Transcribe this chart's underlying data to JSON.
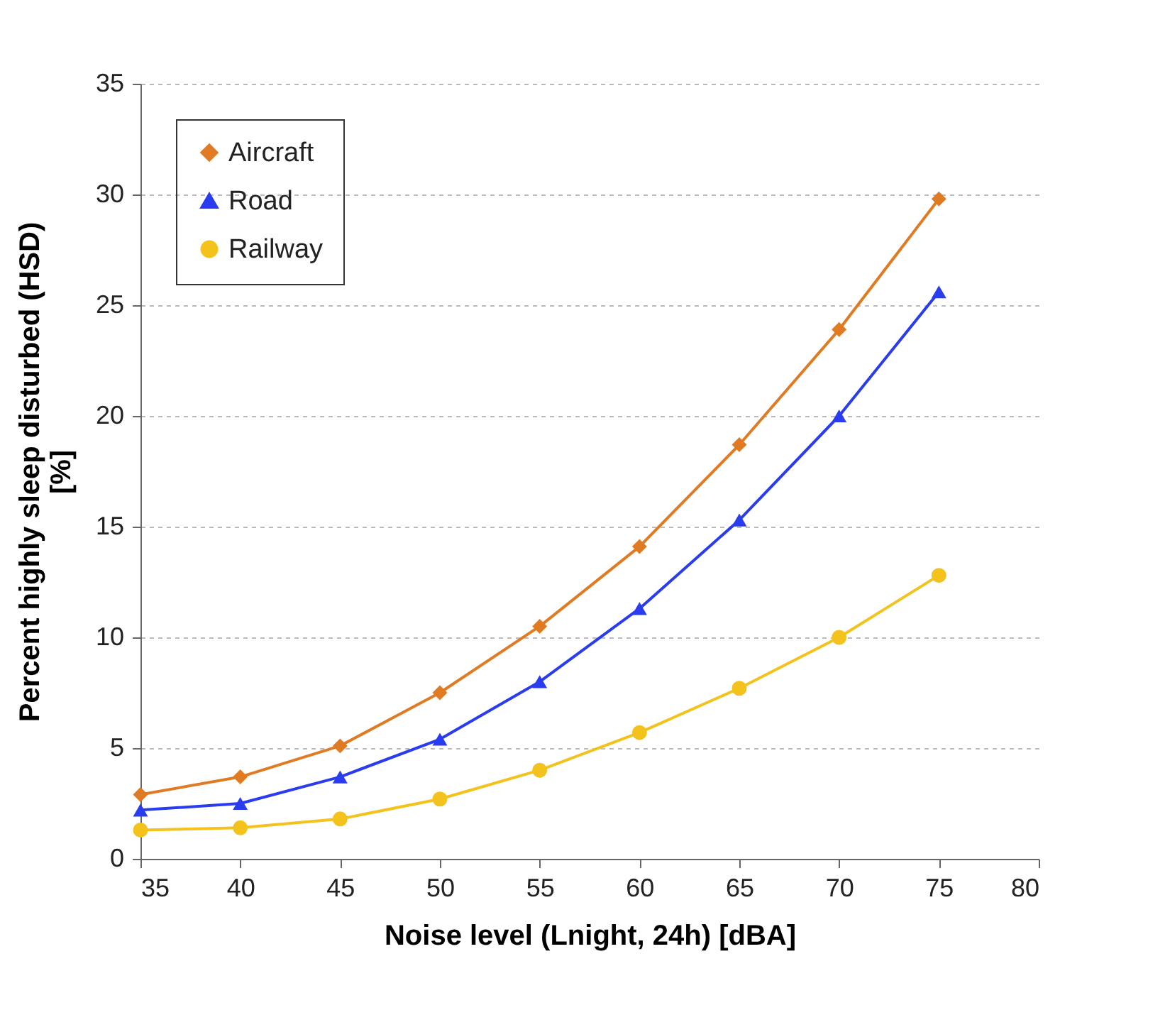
{
  "chart_data": {
    "type": "line",
    "xlabel": "Noise level (Lnight, 24h) [dBA]",
    "ylabel": "Percent highly sleep disturbed (HSD)\n[%]",
    "x": [
      35,
      40,
      45,
      50,
      55,
      60,
      65,
      70,
      75
    ],
    "series": [
      {
        "name": "Aircraft",
        "color": "#e07b24",
        "marker": "diamond",
        "values": [
          2.9,
          3.7,
          5.1,
          7.5,
          10.5,
          14.1,
          18.7,
          23.9,
          29.8
        ]
      },
      {
        "name": "Road",
        "color": "#2a3cf0",
        "marker": "triangle",
        "values": [
          2.2,
          2.5,
          3.7,
          5.4,
          8.0,
          11.3,
          15.3,
          20.0,
          25.6
        ]
      },
      {
        "name": "Railway",
        "color": "#f4c21c",
        "marker": "circle",
        "values": [
          1.3,
          1.4,
          1.8,
          2.7,
          4.0,
          5.7,
          7.7,
          10.0,
          12.8
        ]
      }
    ],
    "xlim": [
      35,
      80
    ],
    "xticks": [
      35,
      40,
      45,
      50,
      55,
      60,
      65,
      70,
      75,
      80
    ],
    "ylim": [
      0,
      35
    ],
    "yticks": [
      0,
      5,
      10,
      15,
      20,
      25,
      30,
      35
    ],
    "grid": "y",
    "legend": "top left",
    "line_style": "solid"
  }
}
